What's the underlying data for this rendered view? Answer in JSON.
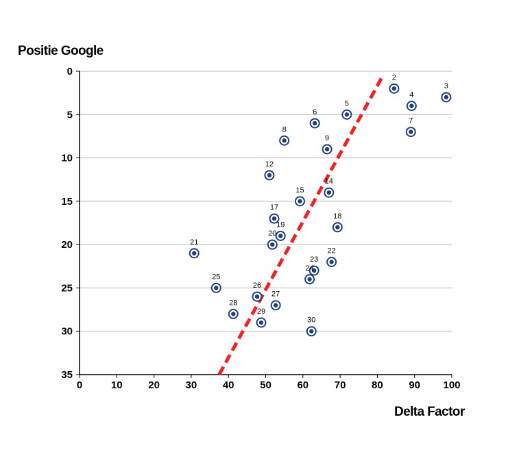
{
  "chart_data": {
    "type": "scatter",
    "title": "",
    "xlabel": "Delta Factor",
    "ylabel": "Positie Google",
    "xlim": [
      0,
      100
    ],
    "ylim": [
      35,
      0
    ],
    "y_axis_inverted": true,
    "xticks": [
      "0",
      "10",
      "20",
      "30",
      "40",
      "50",
      "60",
      "70",
      "80",
      "90",
      "100"
    ],
    "yticks": [
      "0",
      "5",
      "10",
      "15",
      "20",
      "25",
      "30",
      "35"
    ],
    "grid": "horizontal",
    "colors": {
      "marker": "#1f3f7a",
      "trendline": "#ee2222",
      "grid": "#b8b8b8",
      "plot_background": "#ffffff"
    },
    "points": [
      {
        "label": "2",
        "x": 84.5,
        "y": 2
      },
      {
        "label": "3",
        "x": 98.5,
        "y": 3
      },
      {
        "label": "4",
        "x": 89.2,
        "y": 4
      },
      {
        "label": "5",
        "x": 71.8,
        "y": 5
      },
      {
        "label": "6",
        "x": 63.2,
        "y": 6
      },
      {
        "label": "7",
        "x": 89.0,
        "y": 7
      },
      {
        "label": "8",
        "x": 55.0,
        "y": 8
      },
      {
        "label": "9",
        "x": 66.5,
        "y": 9
      },
      {
        "label": "12",
        "x": 51.0,
        "y": 12
      },
      {
        "label": "14",
        "x": 67.0,
        "y": 14
      },
      {
        "label": "15",
        "x": 59.2,
        "y": 15
      },
      {
        "label": "17",
        "x": 52.3,
        "y": 17
      },
      {
        "label": "18",
        "x": 69.3,
        "y": 18
      },
      {
        "label": "19",
        "x": 54.0,
        "y": 19
      },
      {
        "label": "20",
        "x": 51.8,
        "y": 20
      },
      {
        "label": "21",
        "x": 30.8,
        "y": 21
      },
      {
        "label": "22",
        "x": 67.7,
        "y": 22
      },
      {
        "label": "23",
        "x": 63.0,
        "y": 23
      },
      {
        "label": "24",
        "x": 61.8,
        "y": 24
      },
      {
        "label": "25",
        "x": 36.7,
        "y": 25
      },
      {
        "label": "26",
        "x": 47.7,
        "y": 26
      },
      {
        "label": "27",
        "x": 52.7,
        "y": 27
      },
      {
        "label": "28",
        "x": 41.3,
        "y": 28
      },
      {
        "label": "29",
        "x": 48.8,
        "y": 29
      },
      {
        "label": "30",
        "x": 62.3,
        "y": 30
      }
    ],
    "trendline": {
      "style": "dashed",
      "points": [
        {
          "x": 37.5,
          "y": 35
        },
        {
          "x": 81.5,
          "y": 0.5
        }
      ]
    }
  }
}
